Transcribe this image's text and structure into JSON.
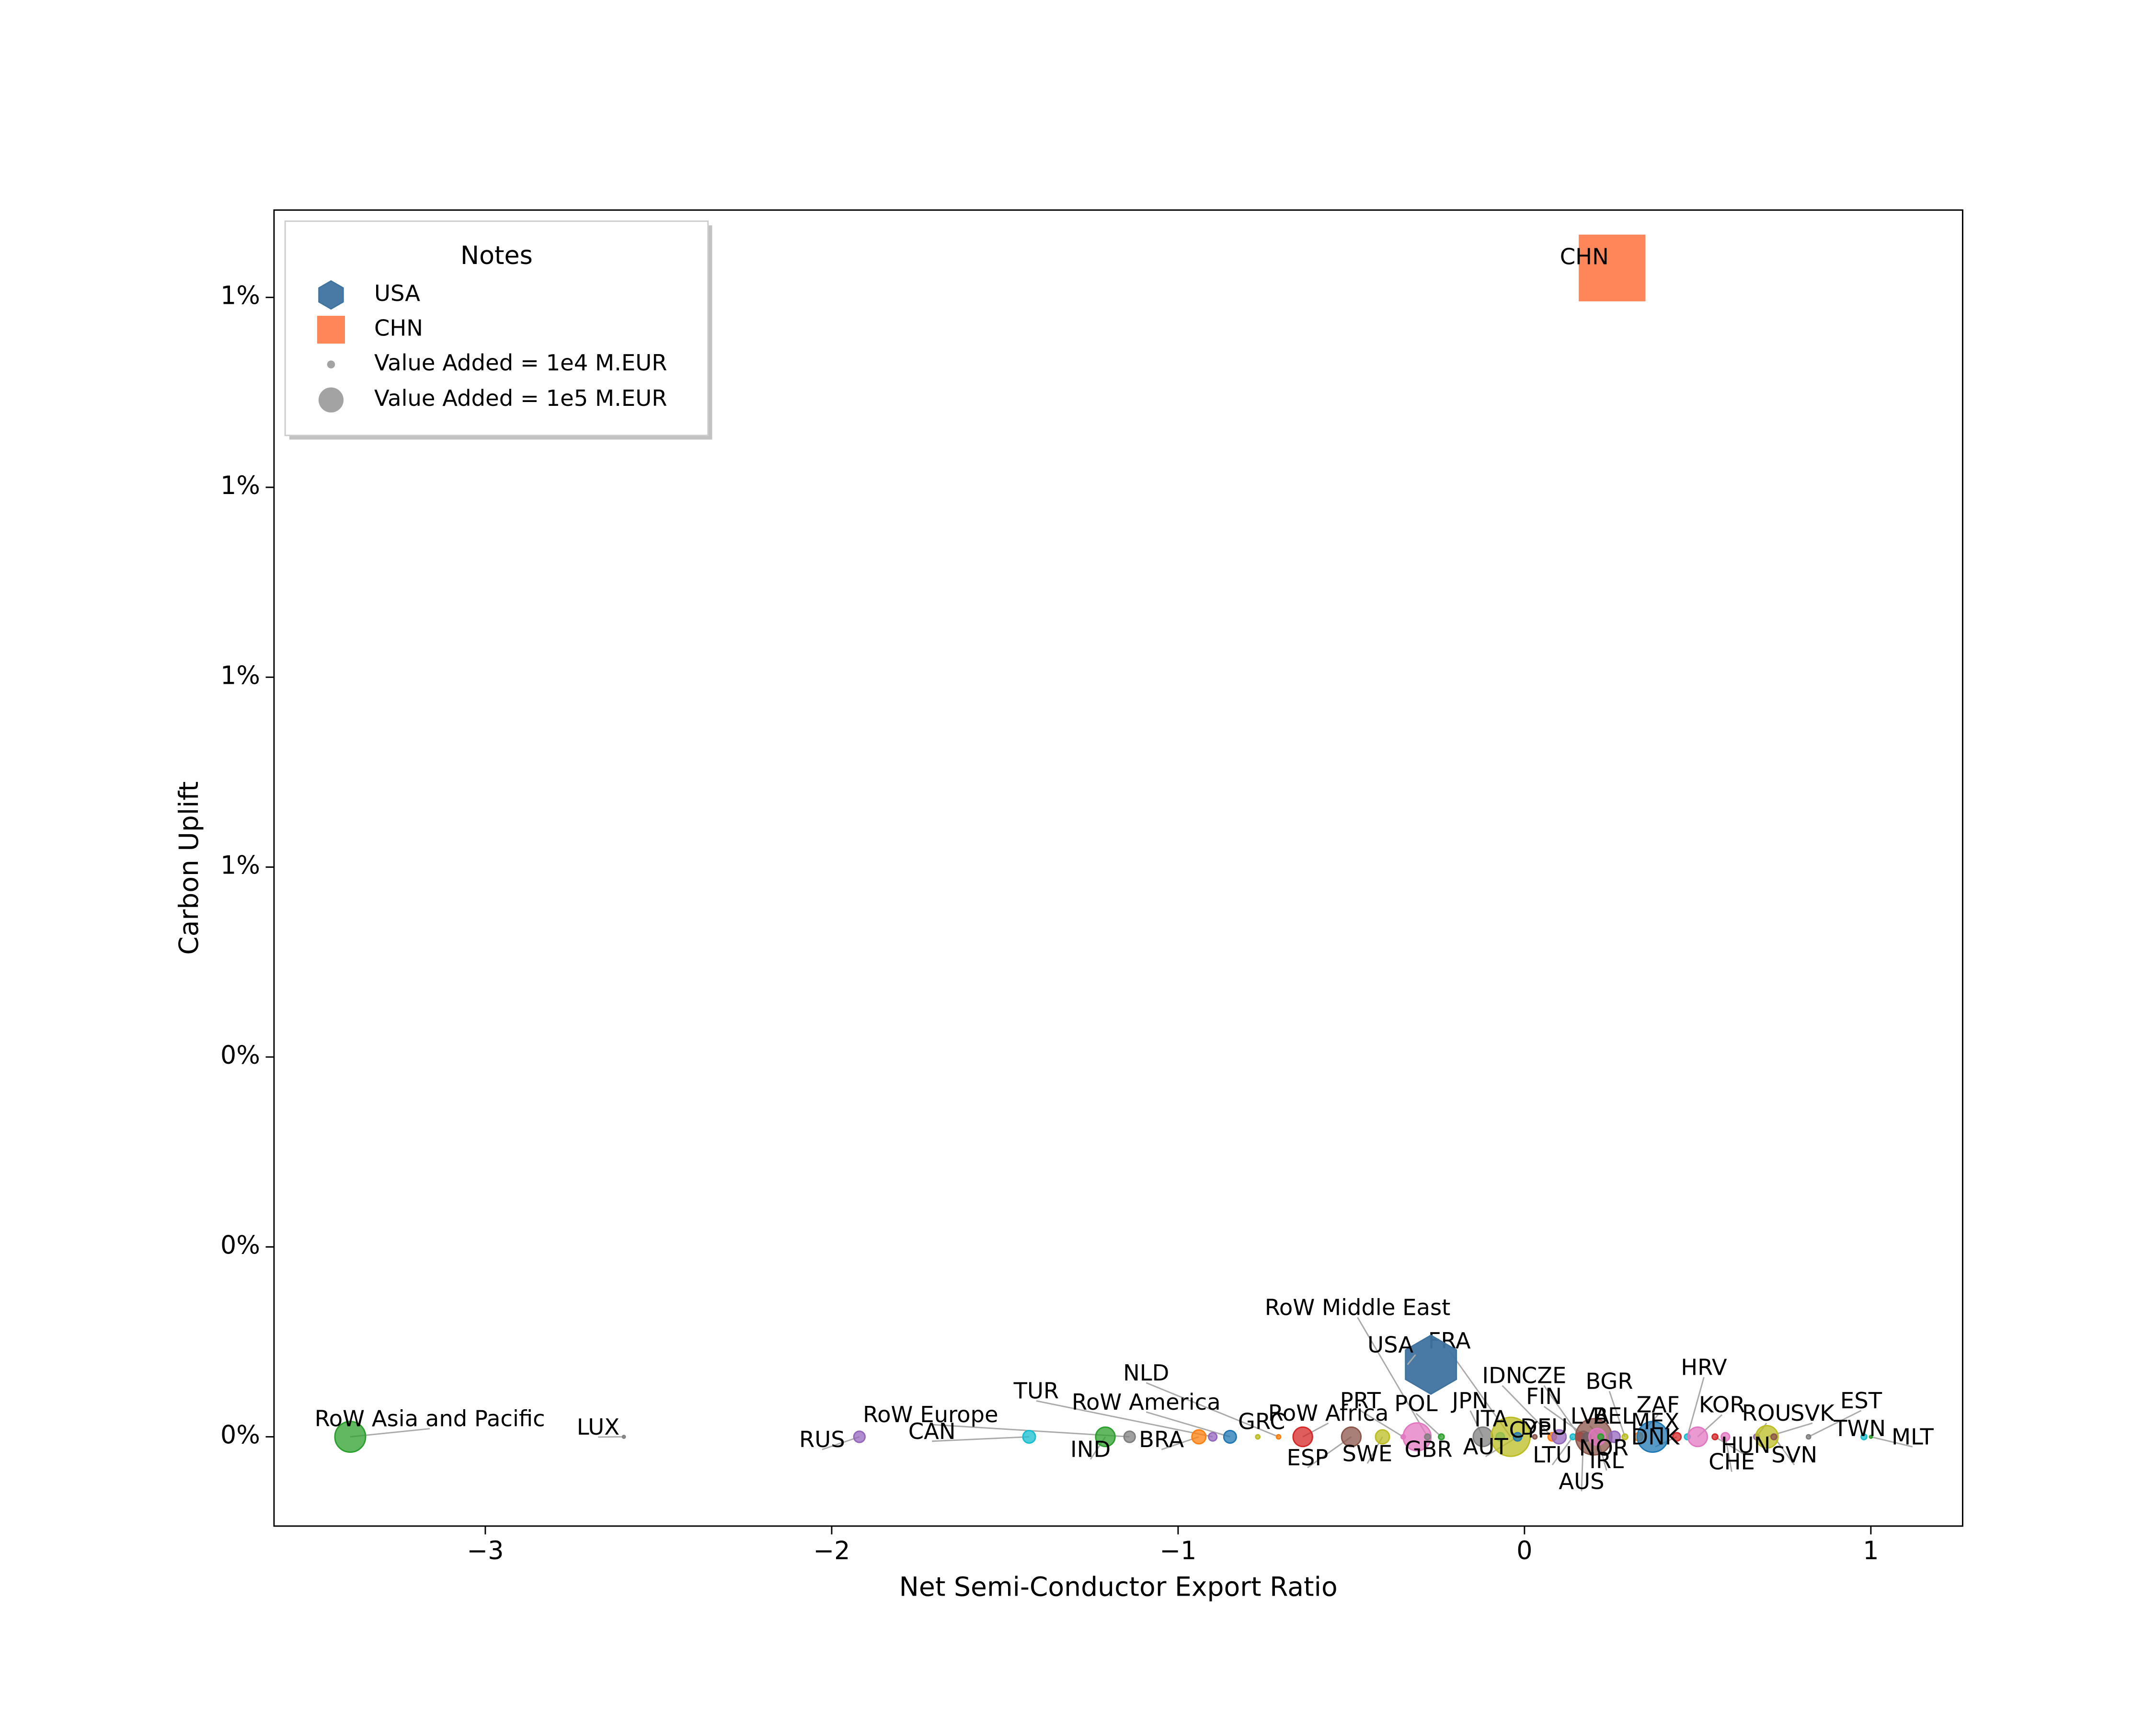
{
  "chart_data": {
    "type": "scatter",
    "xlabel": "Net Semi-Conductor Export Ratio",
    "ylabel": "Carbon Uplift",
    "xlim": [
      -3.61,
      1.265
    ],
    "ylim": [
      -0.094,
      1.292
    ],
    "xticks": [
      {
        "value": -3,
        "label": "−3"
      },
      {
        "value": -2,
        "label": "−2"
      },
      {
        "value": -1,
        "label": "−1"
      },
      0,
      1
    ],
    "yticks": [
      {
        "value": 0,
        "label": "0%"
      },
      {
        "value": 0.2,
        "label": "0%"
      },
      {
        "value": 0.4,
        "label": "0%"
      },
      {
        "value": 0.6,
        "label": "1%"
      },
      {
        "value": 0.8,
        "label": "1%"
      },
      {
        "value": 1.0,
        "label": "1%"
      },
      {
        "value": 1.2,
        "label": "1%"
      }
    ],
    "legend": {
      "title": "Notes",
      "position": "upper left",
      "size_entries": [
        {
          "value": 10000,
          "label": "Value Added = 1e4 M.EUR"
        },
        {
          "value": 100000,
          "label": "Value Added = 1e5 M.EUR"
        }
      ]
    },
    "highlights": [
      {
        "name": "USA",
        "marker": "hexagon",
        "color": "#3f73a0",
        "x": -0.27,
        "y": 0.076,
        "size": 550000
      },
      {
        "name": "CHN",
        "marker": "square",
        "color": "#ff7f50",
        "x": 0.253,
        "y": 1.231,
        "size": 710000
      }
    ],
    "points": {
      "labels": [
        "RoW Asia and Pacific",
        "LUX",
        "RUS",
        "CAN",
        "IND",
        "RoW Europe",
        "BRA",
        "TUR",
        "RoW America",
        "NLD",
        "GRC",
        "RoW Africa",
        "ESP",
        "SWE",
        "PRT",
        "GBR",
        "RoW Middle East",
        "POL",
        "JPN",
        "ITA",
        "FRA",
        "AUT",
        "CYP",
        "IDN",
        "DEU",
        "LTU",
        "AUS",
        "CZE",
        "FIN",
        "NOR",
        "IRL",
        "LVA",
        "BEL",
        "BGR",
        "ZAF",
        "MEX",
        "DNK",
        "HRV",
        "KOR",
        "HUN",
        "CHE",
        "ROU",
        "SVK",
        "SVN",
        "EST",
        "TWN",
        "MLT"
      ],
      "x": [
        -3.39,
        -2.6,
        -1.92,
        -1.43,
        -1.21,
        -1.14,
        -0.94,
        -0.9,
        -0.85,
        -0.71,
        -0.77,
        -0.64,
        -0.5,
        -0.41,
        -0.35,
        -0.31,
        -0.28,
        -0.24,
        -0.12,
        -0.07,
        -0.04,
        -0.02,
        0.03,
        0.08,
        0.1,
        0.14,
        0.17,
        0.16,
        0.18,
        0.2,
        0.21,
        0.22,
        0.26,
        0.29,
        0.33,
        0.37,
        0.44,
        0.47,
        0.5,
        0.55,
        0.58,
        0.67,
        0.7,
        0.72,
        0.82,
        0.98,
        1.0
      ],
      "y": [
        0,
        0,
        0,
        0,
        0,
        0,
        0,
        0,
        0,
        0,
        0,
        0,
        0,
        0,
        0,
        0,
        0,
        0,
        0,
        0,
        0,
        0,
        0,
        0,
        0,
        0,
        0,
        0,
        0,
        0,
        0,
        0,
        0,
        0,
        0,
        0,
        0,
        0,
        0,
        0,
        0,
        0,
        0,
        0,
        0,
        0,
        0
      ],
      "sizes": [
        150000,
        1200,
        20000,
        25000,
        60000,
        20000,
        31000,
        11000,
        25000,
        2800,
        2800,
        60000,
        60000,
        31000,
        2800,
        123000,
        5000,
        5000,
        60000,
        11000,
        242000,
        11000,
        2800,
        11000,
        31000,
        5000,
        20000,
        11000,
        11000,
        209000,
        44000,
        5000,
        20000,
        5000,
        11000,
        150000,
        11000,
        5000,
        60000,
        5000,
        11000,
        5000,
        79000,
        5000,
        2800,
        5000,
        1200
      ],
      "colors": [
        "#2ca02c",
        "#7f7f7f",
        "#9467bd",
        "#17becf",
        "#2ca02c",
        "#7f7f7f",
        "#ff7f0e",
        "#9467bd",
        "#1f77b4",
        "#ff7f0e",
        "#bcbd22",
        "#d62728",
        "#8c564b",
        "#bcbd22",
        "#e377c2",
        "#e377c2",
        "#7f7f7f",
        "#2ca02c",
        "#7f7f7f",
        "#17becf",
        "#bcbd22",
        "#1f77b4",
        "#8c564b",
        "#ff7f0e",
        "#9467bd",
        "#17becf",
        "#7f7f7f",
        "#d62728",
        "#1f77b4",
        "#8c564b",
        "#e377c2",
        "#2ca02c",
        "#9467bd",
        "#bcbd22",
        "#ff7f0e",
        "#1f77b4",
        "#d62728",
        "#17becf",
        "#e377c2",
        "#d62728",
        "#e377c2",
        "#9467bd",
        "#bcbd22",
        "#8c564b",
        "#7f7f7f",
        "#17becf",
        "#2ca02c"
      ]
    }
  }
}
